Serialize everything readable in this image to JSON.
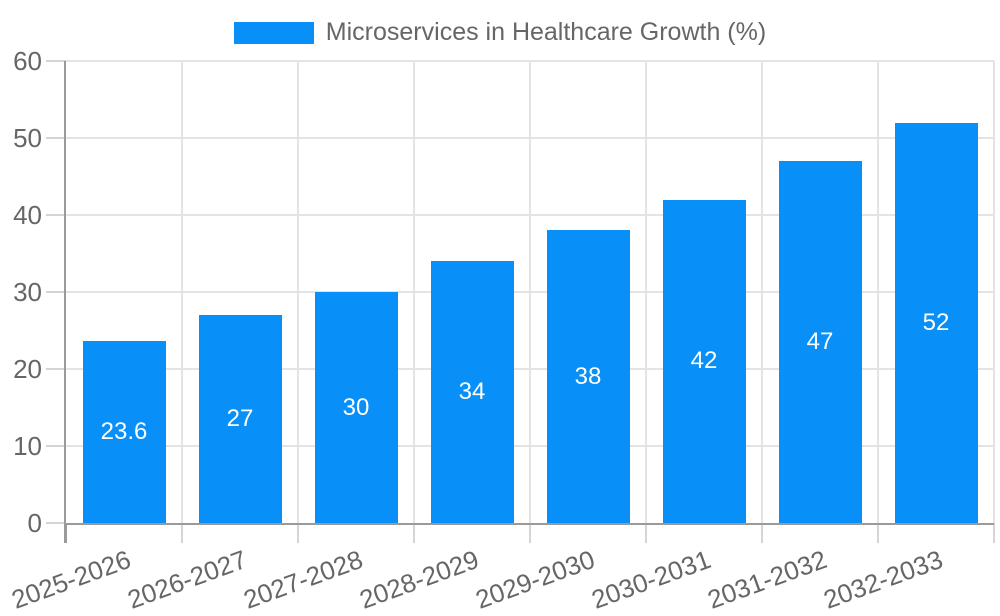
{
  "legend": {
    "label": "Microservices in Healthcare Growth (%)",
    "swatch_color": "#088ff8"
  },
  "chart_data": {
    "type": "bar",
    "title": "Microservices in Healthcare Growth (%)",
    "categories": [
      "2025-2026",
      "2026-2027",
      "2027-2028",
      "2028-2029",
      "2029-2030",
      "2030-2031",
      "2031-2032",
      "2032-2033"
    ],
    "values": [
      23.6,
      27,
      30,
      34,
      38,
      42,
      47,
      52
    ],
    "value_labels": [
      "23.6",
      "27",
      "30",
      "34",
      "38",
      "42",
      "47",
      "52"
    ],
    "ylim": [
      0,
      60
    ],
    "yticks": [
      0,
      10,
      20,
      30,
      40,
      50,
      60
    ],
    "grid": true,
    "legend_position": "top",
    "xlabel": "",
    "ylabel": "",
    "x_label_rotation_deg": -20,
    "colors": {
      "bar": "#088ff8",
      "value_label": "#ffffff",
      "axis_text": "#666666",
      "axis_line": "#9a9a9a",
      "grid": "#e4e4e4",
      "tick": "#d4d4d4"
    }
  }
}
